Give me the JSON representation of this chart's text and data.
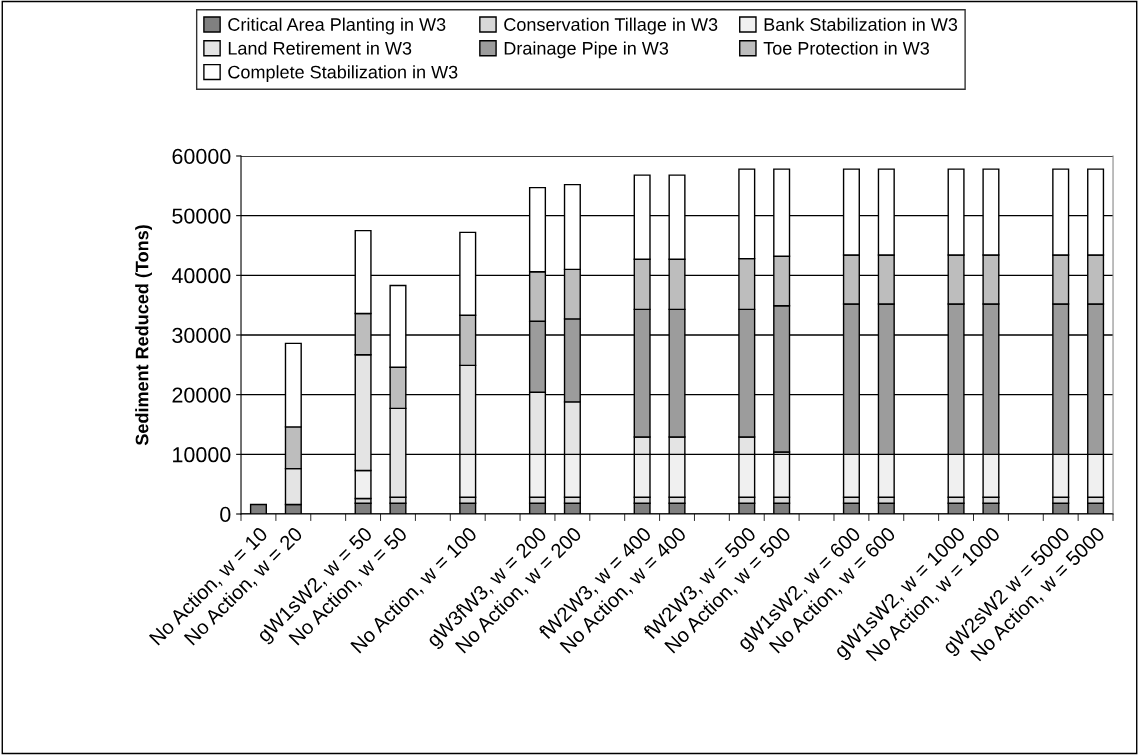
{
  "chart_data": {
    "type": "bar",
    "stacked": true,
    "ylabel": "Sediment Reduced (Tons)",
    "categories": [
      "No Action, w = 10",
      "No Action, w = 20",
      null,
      "gW1sW2, w = 50",
      "No Action, w = 50",
      null,
      "No Action, w = 100",
      null,
      "gW3fW3, w = 200",
      "No Action, w = 200",
      null,
      "fW2W3, w = 400",
      "No Action, w = 400",
      null,
      "fW2W3, w = 500",
      "No Action, w = 500",
      null,
      "gW1sW2, w = 600",
      "No Action, w = 600",
      null,
      "gW1sW2, w = 1000",
      "No Action, w = 1000",
      null,
      "gW2sW2 w = 5000",
      "No Action, w = 5000"
    ],
    "series": [
      {
        "name": "Critical Area Planting in W3",
        "color": "#808080",
        "values": [
          1600,
          1600,
          null,
          1800,
          1800,
          null,
          1800,
          null,
          1800,
          1800,
          null,
          1800,
          1800,
          null,
          1800,
          1800,
          null,
          1800,
          1800,
          null,
          1800,
          1800,
          null,
          1800,
          1800
        ]
      },
      {
        "name": "Conservation Tillage in W3",
        "color": "#d8d8d8",
        "values": [
          null,
          null,
          null,
          800,
          1000,
          null,
          1000,
          null,
          1000,
          1000,
          null,
          1000,
          1000,
          null,
          1000,
          1000,
          null,
          1000,
          1000,
          null,
          1000,
          1000,
          null,
          1000,
          1000
        ]
      },
      {
        "name": "Bank Stabilization in W3",
        "color": "#f0f0f0",
        "values": [
          null,
          null,
          null,
          4700,
          null,
          null,
          7200,
          null,
          7200,
          7200,
          null,
          7200,
          7200,
          null,
          7200,
          7200,
          null,
          7200,
          7200,
          null,
          7200,
          7200,
          null,
          7200,
          7200
        ]
      },
      {
        "name": "Land Retirement in W3",
        "color": "#e4e4e4",
        "values": [
          null,
          6000,
          null,
          19400,
          14900,
          null,
          14900,
          null,
          10400,
          8800,
          null,
          2900,
          2900,
          null,
          2900,
          400,
          null,
          null,
          null,
          null,
          null,
          null,
          null,
          null,
          null
        ]
      },
      {
        "name": "Drainage Pipe in W3",
        "color": "#9c9c9c",
        "values": [
          null,
          null,
          null,
          null,
          null,
          null,
          null,
          null,
          11900,
          13900,
          null,
          21400,
          21400,
          null,
          21400,
          24500,
          null,
          25200,
          25200,
          null,
          25200,
          25200,
          null,
          25200,
          25200
        ]
      },
      {
        "name": "Toe Protection in W3",
        "color": "#bdbdbd",
        "values": [
          null,
          7000,
          null,
          6900,
          6900,
          null,
          8400,
          null,
          8300,
          8300,
          null,
          8400,
          8400,
          null,
          8500,
          8300,
          null,
          8200,
          8200,
          null,
          8200,
          8200,
          null,
          8200,
          8200
        ]
      },
      {
        "name": "Complete Stabilization in W3",
        "color": "#ffffff",
        "values": [
          null,
          14000,
          null,
          13900,
          13700,
          null,
          13900,
          null,
          14100,
          14200,
          null,
          14100,
          14100,
          null,
          15000,
          14600,
          null,
          14400,
          14400,
          null,
          14400,
          14400,
          null,
          14400,
          14400
        ]
      }
    ],
    "ylim": [
      0,
      60000
    ],
    "yticks": [
      0,
      10000,
      20000,
      30000,
      40000,
      50000,
      60000
    ],
    "grid": "y",
    "legend": "top"
  }
}
